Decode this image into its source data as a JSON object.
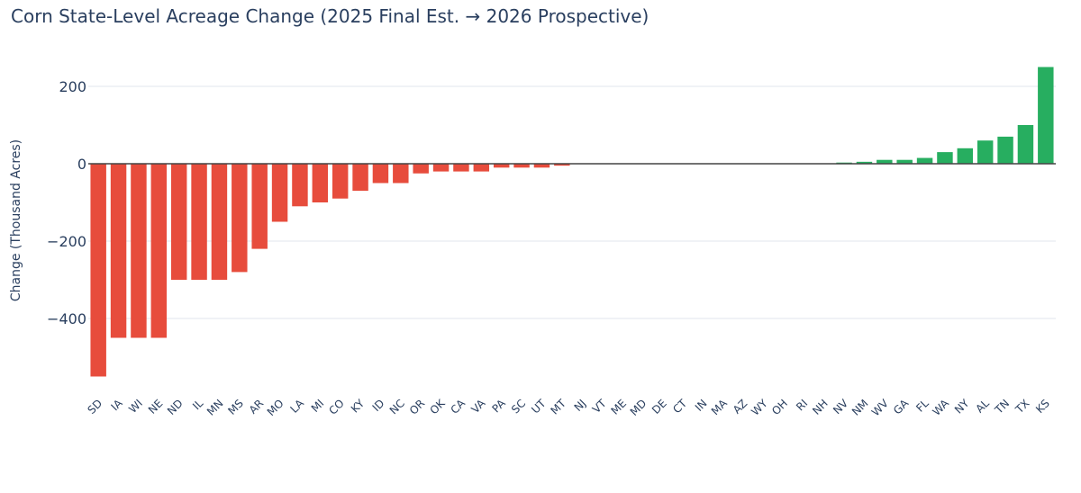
{
  "chart_data": {
    "type": "bar",
    "title": "Corn State-Level Acreage Change (2025 Final Est. → 2026 Prospective)",
    "xlabel": "",
    "ylabel": "Change (Thousand Acres)",
    "ylim": [
      -580,
      300
    ],
    "yticks": [
      200,
      0,
      -200,
      -400
    ],
    "ytick_labels": [
      "200",
      "0",
      "−200",
      "−400"
    ],
    "grid": true,
    "legend": "none",
    "colors": {
      "negative": "#e74c3c",
      "positive": "#27ae60",
      "zero_line": "#444444",
      "grid": "#ebeef3"
    },
    "categories": [
      "SD",
      "IA",
      "WI",
      "NE",
      "ND",
      "IL",
      "MN",
      "MS",
      "AR",
      "MO",
      "LA",
      "MI",
      "CO",
      "KY",
      "ID",
      "NC",
      "OR",
      "OK",
      "CA",
      "VA",
      "PA",
      "SC",
      "UT",
      "MT",
      "NJ",
      "VT",
      "ME",
      "MD",
      "DE",
      "CT",
      "IN",
      "MA",
      "AZ",
      "WY",
      "OH",
      "RI",
      "NH",
      "NV",
      "NM",
      "WV",
      "GA",
      "FL",
      "WA",
      "NY",
      "AL",
      "TN",
      "TX",
      "KS"
    ],
    "values": [
      -550,
      -450,
      -450,
      -450,
      -300,
      -300,
      -300,
      -280,
      -220,
      -150,
      -110,
      -100,
      -90,
      -70,
      -50,
      -50,
      -25,
      -20,
      -20,
      -20,
      -10,
      -10,
      -10,
      -5,
      0,
      0,
      0,
      0,
      0,
      0,
      0,
      0,
      0,
      0,
      0,
      0,
      0,
      3,
      5,
      10,
      10,
      15,
      30,
      40,
      60,
      70,
      100,
      250
    ]
  }
}
